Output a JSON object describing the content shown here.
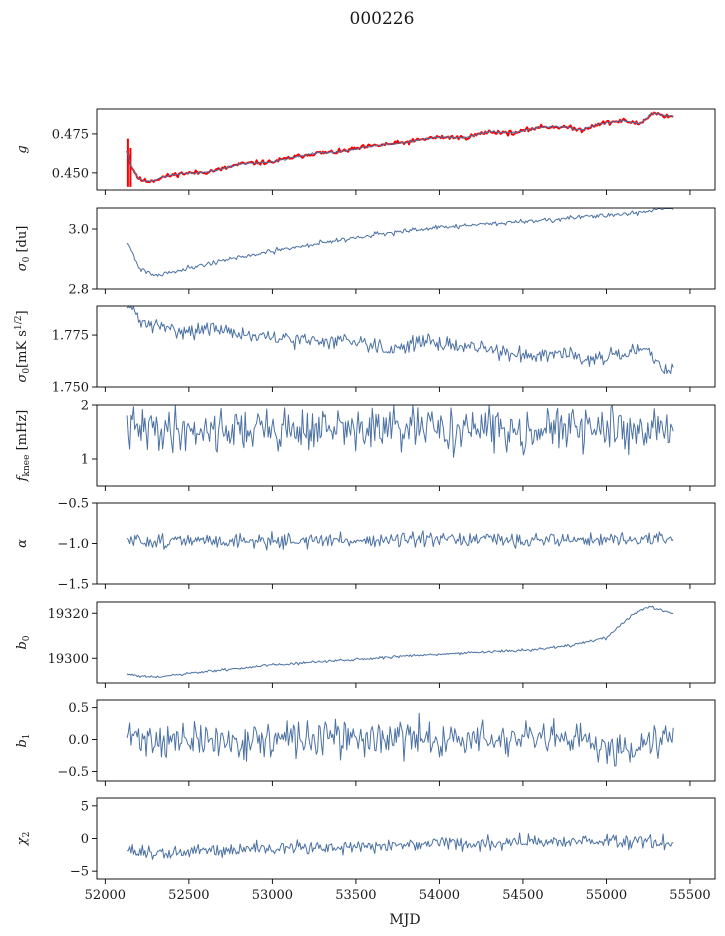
{
  "figure": {
    "title": "000226",
    "xlabel": "MJD"
  },
  "chart_data": {
    "type": "line",
    "x_axis": {
      "label": "MJD",
      "lim": [
        51950,
        55650
      ],
      "ticks": [
        52000,
        52500,
        53000,
        53500,
        54000,
        54500,
        55000,
        55500
      ]
    },
    "x_range_data": [
      52130,
      55400
    ],
    "panels": [
      {
        "ylabel": "g",
        "ylim": [
          0.439,
          0.491
        ],
        "yticks": [
          0.45,
          0.475
        ],
        "yticklabels": [
          "0.450",
          "0.475"
        ],
        "series": [
          {
            "style": "red",
            "color": "#ff0000",
            "width": 2.0,
            "trend": [
              [
                52130,
                0.465
              ],
              [
                52150,
                0.455
              ],
              [
                52200,
                0.446
              ],
              [
                52250,
                0.4445
              ],
              [
                52300,
                0.4455
              ],
              [
                52350,
                0.4475
              ],
              [
                52450,
                0.4495
              ],
              [
                52600,
                0.4505
              ],
              [
                52700,
                0.4525
              ],
              [
                52800,
                0.4555
              ],
              [
                52900,
                0.4565
              ],
              [
                53000,
                0.457
              ],
              [
                53100,
                0.4595
              ],
              [
                53250,
                0.4625
              ],
              [
                53400,
                0.4635
              ],
              [
                53550,
                0.4665
              ],
              [
                53700,
                0.4685
              ],
              [
                53800,
                0.4695
              ],
              [
                53950,
                0.4725
              ],
              [
                54050,
                0.473
              ],
              [
                54150,
                0.4725
              ],
              [
                54300,
                0.4765
              ],
              [
                54450,
                0.4755
              ],
              [
                54600,
                0.4795
              ],
              [
                54750,
                0.4795
              ],
              [
                54850,
                0.4775
              ],
              [
                54950,
                0.4815
              ],
              [
                55100,
                0.4835
              ],
              [
                55200,
                0.4815
              ],
              [
                55280,
                0.4885
              ],
              [
                55350,
                0.4865
              ],
              [
                55400,
                0.4865
              ]
            ],
            "spikes": [
              [
                52135,
                0.441,
                0.472
              ],
              [
                52150,
                0.441,
                0.466
              ]
            ],
            "noise": 0.0007,
            "seed": 11
          },
          {
            "style": "line",
            "color": "#4c72a4",
            "width": 1.0,
            "trend": [
              [
                52130,
                0.465
              ],
              [
                52150,
                0.455
              ],
              [
                52200,
                0.446
              ],
              [
                52250,
                0.4445
              ],
              [
                52300,
                0.4455
              ],
              [
                52350,
                0.4475
              ],
              [
                52450,
                0.4495
              ],
              [
                52600,
                0.4505
              ],
              [
                52700,
                0.4525
              ],
              [
                52800,
                0.4555
              ],
              [
                52900,
                0.4565
              ],
              [
                53000,
                0.457
              ],
              [
                53100,
                0.4595
              ],
              [
                53250,
                0.4625
              ],
              [
                53400,
                0.4635
              ],
              [
                53550,
                0.4665
              ],
              [
                53700,
                0.4685
              ],
              [
                53800,
                0.4695
              ],
              [
                53950,
                0.4725
              ],
              [
                54050,
                0.473
              ],
              [
                54150,
                0.4725
              ],
              [
                54300,
                0.4765
              ],
              [
                54450,
                0.4755
              ],
              [
                54600,
                0.4795
              ],
              [
                54750,
                0.4795
              ],
              [
                54850,
                0.4775
              ],
              [
                54950,
                0.4815
              ],
              [
                55100,
                0.4835
              ],
              [
                55200,
                0.4815
              ],
              [
                55280,
                0.4885
              ],
              [
                55350,
                0.4865
              ],
              [
                55400,
                0.4865
              ]
            ],
            "noise": 0.0003,
            "seed": 12
          }
        ]
      },
      {
        "ylabel": "σ0 [du]",
        "ylim": [
          2.8,
          3.07
        ],
        "yticks": [
          2.8,
          3.0
        ],
        "yticklabels": [
          "2.8",
          "3.0"
        ],
        "series": [
          {
            "style": "line",
            "color": "#4c72a4",
            "width": 1.0,
            "trend": [
              [
                52130,
                2.96
              ],
              [
                52200,
                2.87
              ],
              [
                52300,
                2.845
              ],
              [
                52500,
                2.87
              ],
              [
                52700,
                2.895
              ],
              [
                53000,
                2.925
              ],
              [
                53300,
                2.955
              ],
              [
                53600,
                2.98
              ],
              [
                54000,
                3.005
              ],
              [
                54500,
                3.025
              ],
              [
                55000,
                3.045
              ],
              [
                55200,
                3.055
              ],
              [
                55400,
                3.075
              ]
            ],
            "noise": 0.004,
            "seed": 21
          }
        ]
      },
      {
        "ylabel": "σ0[mK s^1/2]",
        "ylim": [
          1.75,
          1.789
        ],
        "yticks": [
          1.75,
          1.775
        ],
        "yticklabels": [
          "1.750",
          "1.775"
        ],
        "series": [
          {
            "style": "line",
            "color": "#4c72a4",
            "width": 1.0,
            "trend": [
              [
                52130,
                1.792
              ],
              [
                52200,
                1.782
              ],
              [
                52300,
                1.779
              ],
              [
                52500,
                1.777
              ],
              [
                52700,
                1.778
              ],
              [
                52900,
                1.774
              ],
              [
                53100,
                1.773
              ],
              [
                53300,
                1.772
              ],
              [
                53500,
                1.773
              ],
              [
                53700,
                1.768
              ],
              [
                53900,
                1.772
              ],
              [
                54100,
                1.77
              ],
              [
                54300,
                1.768
              ],
              [
                54500,
                1.765
              ],
              [
                54700,
                1.767
              ],
              [
                54900,
                1.764
              ],
              [
                55100,
                1.765
              ],
              [
                55250,
                1.768
              ],
              [
                55330,
                1.758
              ],
              [
                55400,
                1.76
              ]
            ],
            "noise": 0.0018,
            "seed": 31
          }
        ]
      },
      {
        "ylabel": "f_knee [mHz]",
        "ylim": [
          0.5,
          2.0
        ],
        "yticks": [
          1,
          2
        ],
        "yticklabels": [
          "1",
          "2"
        ],
        "series": [
          {
            "style": "line",
            "color": "#4c72a4",
            "width": 1.0,
            "trend": [
              [
                52130,
                1.55
              ],
              [
                55400,
                1.55
              ]
            ],
            "noise": 0.2,
            "seed": 41
          }
        ]
      },
      {
        "ylabel": "α",
        "ylim": [
          -1.5,
          -0.5
        ],
        "yticks": [
          -1.5,
          -1.0,
          -0.5
        ],
        "yticklabels": [
          "−1.5",
          "−1.0",
          "−0.5"
        ],
        "series": [
          {
            "style": "line",
            "color": "#4c72a4",
            "width": 1.0,
            "trend": [
              [
                52130,
                -0.97
              ],
              [
                55400,
                -0.95
              ]
            ],
            "noise": 0.045,
            "seed": 51
          }
        ]
      },
      {
        "ylabel": "b0",
        "ylim": [
          19289,
          19325
        ],
        "yticks": [
          19300,
          19320
        ],
        "yticklabels": [
          "19300",
          "19320"
        ],
        "series": [
          {
            "style": "line",
            "color": "#4c72a4",
            "width": 1.0,
            "trend": [
              [
                52130,
                19293
              ],
              [
                52200,
                19292
              ],
              [
                52300,
                19291.5
              ],
              [
                52600,
                19294
              ],
              [
                53000,
                19297
              ],
              [
                53400,
                19299
              ],
              [
                53800,
                19301
              ],
              [
                54200,
                19302.5
              ],
              [
                54600,
                19304
              ],
              [
                54800,
                19306
              ],
              [
                55000,
                19309
              ],
              [
                55150,
                19319
              ],
              [
                55250,
                19323
              ],
              [
                55300,
                19322
              ],
              [
                55400,
                19320
              ]
            ],
            "noise": 0.3,
            "seed": 61
          }
        ]
      },
      {
        "ylabel": "b1",
        "ylim": [
          -0.65,
          0.62
        ],
        "yticks": [
          -0.5,
          0.0,
          0.5
        ],
        "yticklabels": [
          "−0.5",
          "0.0",
          "0.5"
        ],
        "series": [
          {
            "style": "line",
            "color": "#4c72a4",
            "width": 1.0,
            "trend": [
              [
                52130,
                0.05
              ],
              [
                52400,
                -0.02
              ],
              [
                52800,
                -0.03
              ],
              [
                53200,
                0.01
              ],
              [
                53600,
                0.02
              ],
              [
                54000,
                0.01
              ],
              [
                54400,
                -0.01
              ],
              [
                54800,
                -0.02
              ],
              [
                55000,
                -0.1
              ],
              [
                55150,
                -0.15
              ],
              [
                55300,
                0.05
              ],
              [
                55400,
                0.15
              ]
            ],
            "noise": 0.14,
            "seed": 71
          }
        ]
      },
      {
        "ylabel": "χ2",
        "ylim": [
          -6.2,
          6.2
        ],
        "yticks": [
          -5,
          0,
          5
        ],
        "yticklabels": [
          "−5",
          "0",
          "5"
        ],
        "series": [
          {
            "style": "line",
            "color": "#4c72a4",
            "width": 1.0,
            "trend": [
              [
                52130,
                -1.5
              ],
              [
                52200,
                -2.0
              ],
              [
                52300,
                -2.5
              ],
              [
                52600,
                -1.8
              ],
              [
                53000,
                -1.5
              ],
              [
                53500,
                -1.2
              ],
              [
                54000,
                -0.9
              ],
              [
                54500,
                -0.5
              ],
              [
                55000,
                -0.3
              ],
              [
                55400,
                -0.8
              ]
            ],
            "noise": 0.55,
            "seed": 81
          }
        ]
      }
    ]
  }
}
